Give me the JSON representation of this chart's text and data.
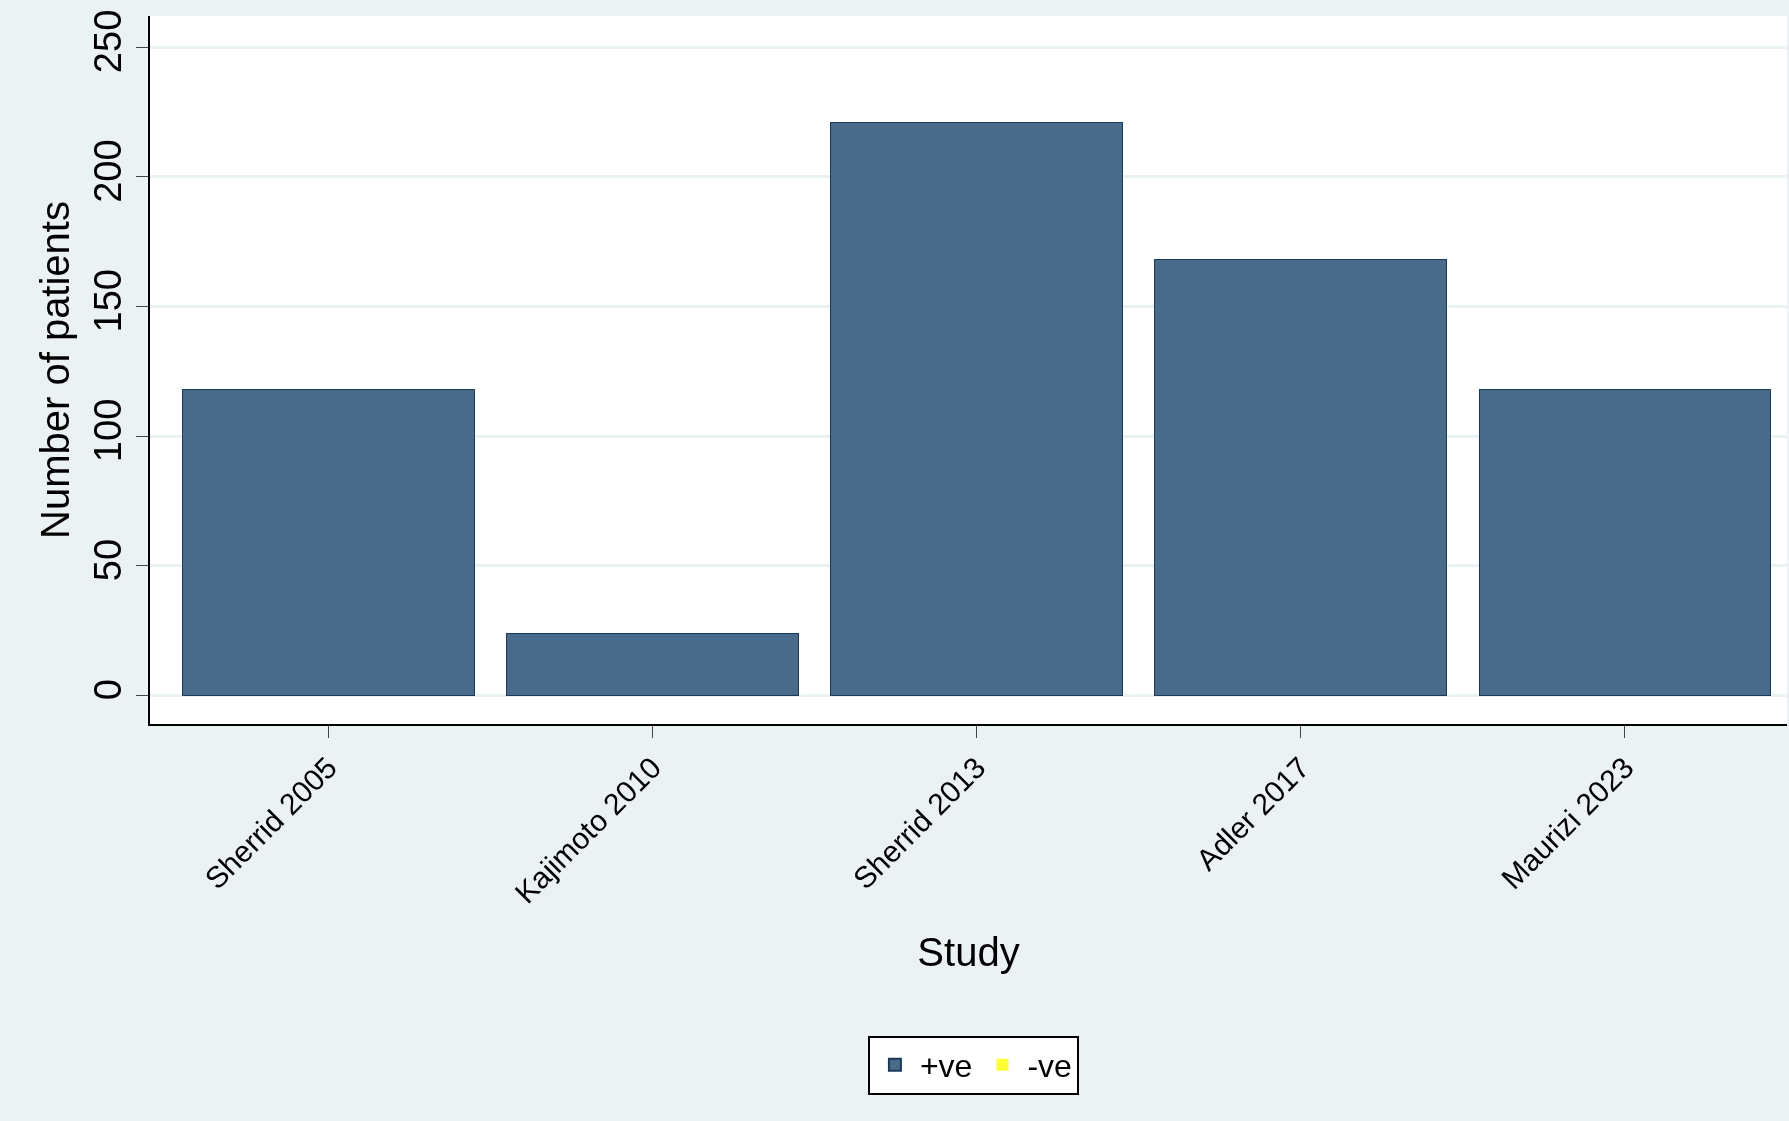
{
  "chart_data": {
    "type": "bar",
    "stacked": true,
    "xlabel": "Study",
    "ylabel": "Number of patients",
    "categories": [
      "Sherrid 2005",
      "Kajimoto 2010",
      "Sherrid 2013",
      "Adler 2017",
      "Maurizi 2023"
    ],
    "series": [
      {
        "name": "+ve",
        "color": "#486b8b",
        "values": [
          118,
          24,
          221,
          168,
          118
        ]
      },
      {
        "name": "-ve",
        "color": "#ffff33",
        "values": [
          0,
          0,
          0,
          0,
          0
        ]
      }
    ],
    "ylim": [
      -11,
      262
    ],
    "yticks": [
      0,
      50,
      100,
      150,
      200,
      250
    ],
    "grid": "y",
    "legend": "bottom"
  }
}
